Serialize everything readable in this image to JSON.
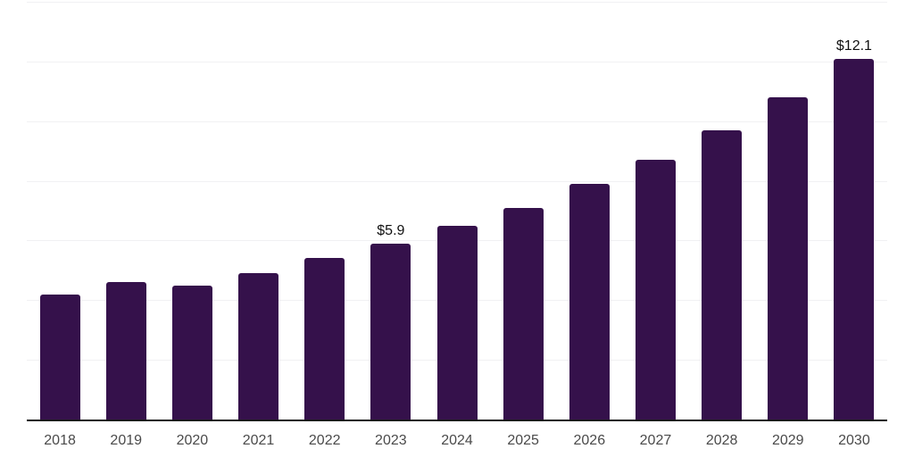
{
  "chart_data": {
    "type": "bar",
    "title": "",
    "xlabel": "",
    "ylabel": "",
    "categories": [
      "2018",
      "2019",
      "2020",
      "2021",
      "2022",
      "2023",
      "2024",
      "2025",
      "2026",
      "2027",
      "2028",
      "2029",
      "2030"
    ],
    "values": [
      4.2,
      4.6,
      4.5,
      4.9,
      5.4,
      5.9,
      6.5,
      7.1,
      7.9,
      8.7,
      9.7,
      10.8,
      12.1
    ],
    "annotations": [
      {
        "category": "2023",
        "label": "$5.9"
      },
      {
        "category": "2030",
        "label": "$12.1"
      }
    ],
    "ylim": [
      0,
      14
    ],
    "grid_step": 2,
    "grid": true,
    "legend": false,
    "colors": {
      "bar": "#35114B",
      "gridline": "#F1F1F3",
      "axis": "#1A1A1A",
      "tick_label": "#4A4A4A",
      "annotation": "#111111"
    }
  }
}
